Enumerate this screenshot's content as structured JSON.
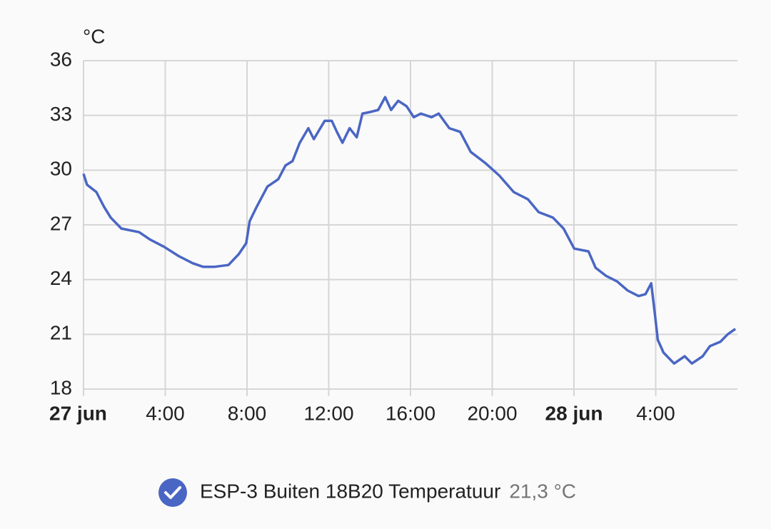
{
  "chart_data": {
    "type": "line",
    "y_label": "°C",
    "x": [
      0,
      0.17,
      0.63,
      1.0,
      1.33,
      1.85,
      2.72,
      3.25,
      3.94,
      4.64,
      5.34,
      5.86,
      6.39,
      7.09,
      7.6,
      7.96,
      8.13,
      8.48,
      9.0,
      9.53,
      9.88,
      10.23,
      10.58,
      11.0,
      11.27,
      11.8,
      12.15,
      12.4,
      12.67,
      13.02,
      13.37,
      13.65,
      14.07,
      14.42,
      14.76,
      15.05,
      15.4,
      15.81,
      16.16,
      16.51,
      17.03,
      17.38,
      17.9,
      18.43,
      18.95,
      19.65,
      20.35,
      21.05,
      21.75,
      22.27,
      22.97,
      23.49,
      24.01,
      24.71,
      25.06,
      25.58,
      26.11,
      26.63,
      27.16,
      27.5,
      27.78,
      27.96,
      28.1,
      28.38,
      28.9,
      29.42,
      29.77,
      30.3,
      30.65,
      31.17,
      31.52,
      31.9
    ],
    "series": [
      {
        "name": "ESP-3 Buiten 18B20 Temperatuur",
        "color": "#4a66c4",
        "values": [
          29.8,
          29.2,
          28.8,
          28.0,
          27.4,
          26.8,
          26.6,
          26.2,
          25.8,
          25.3,
          24.9,
          24.7,
          24.7,
          24.8,
          25.4,
          26.0,
          27.2,
          28.0,
          29.1,
          29.5,
          30.25,
          30.5,
          31.5,
          32.3,
          31.7,
          32.7,
          32.7,
          32.1,
          31.5,
          32.3,
          31.8,
          33.1,
          33.2,
          33.3,
          34.0,
          33.3,
          33.8,
          33.5,
          32.9,
          33.1,
          32.9,
          33.1,
          32.3,
          32.1,
          31.0,
          30.4,
          29.7,
          28.8,
          28.4,
          27.7,
          27.4,
          26.8,
          25.7,
          25.55,
          24.65,
          24.2,
          23.9,
          23.4,
          23.1,
          23.2,
          23.8,
          22.1,
          20.7,
          20.0,
          19.4,
          19.8,
          19.4,
          19.8,
          20.35,
          20.6,
          21.0,
          21.3
        ],
        "state": {
          "value": 21.3,
          "label": "21,3 °C"
        }
      }
    ],
    "xlim": [
      0,
      32
    ],
    "xticks": [
      {
        "value": 0,
        "label": "27 jun"
      },
      {
        "value": 4,
        "label": "4:00"
      },
      {
        "value": 8,
        "label": "8:00"
      },
      {
        "value": 12,
        "label": "12:00"
      },
      {
        "value": 16,
        "label": "16:00"
      },
      {
        "value": 20,
        "label": "20:00"
      },
      {
        "value": 24,
        "label": "28 jun"
      },
      {
        "value": 28,
        "label": "4:00"
      }
    ],
    "ylim": [
      18,
      36
    ],
    "yticks": [
      18,
      21,
      24,
      27,
      30,
      33,
      36
    ],
    "grid": true
  }
}
